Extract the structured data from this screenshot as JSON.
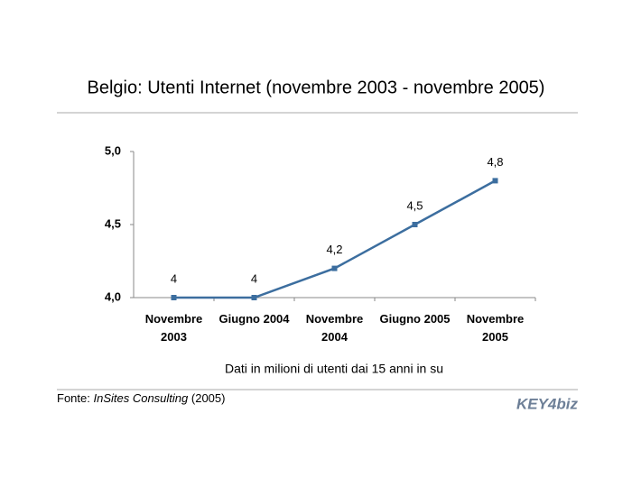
{
  "chart_data": {
    "type": "line",
    "title": "Belgio: Utenti Internet (novembre 2003 - novembre 2005)",
    "categories": [
      "Novembre 2003",
      "Giugno 2004",
      "Novembre 2004",
      "Giugno 2005",
      "Novembre 2005"
    ],
    "series": [
      {
        "name": "Utenti Internet",
        "color": "#3c6e9f",
        "values": [
          4,
          4,
          4.2,
          4.5,
          4.8
        ],
        "value_labels": [
          "4",
          "4",
          "4,2",
          "4,5",
          "4,8"
        ]
      }
    ],
    "ylim": [
      4,
      5
    ],
    "yticks": [
      {
        "value": 4,
        "label": "4,0"
      },
      {
        "value": 4.5,
        "label": "4,5"
      },
      {
        "value": 5,
        "label": "5,0"
      }
    ],
    "xlabel": "Dati in milioni di utenti dai 15 anni in su",
    "source_prefix": "Fonte:",
    "source_name": "InSites Consulting",
    "source_suffix": "(2005)",
    "logo": "KEY4biz"
  }
}
